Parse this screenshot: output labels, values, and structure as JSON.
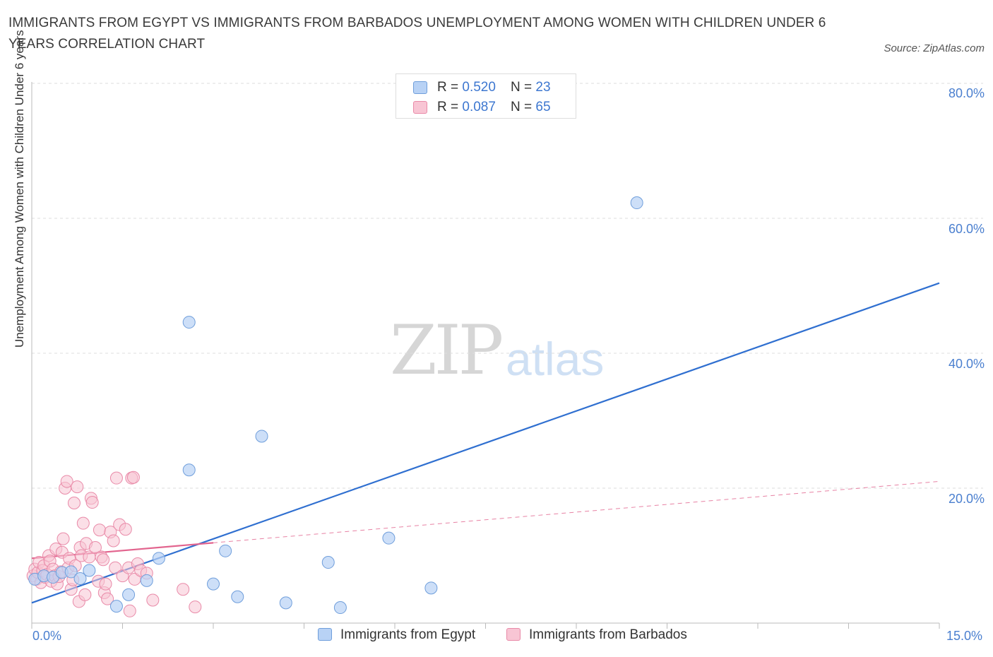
{
  "header": {
    "title": "IMMIGRANTS FROM EGYPT VS IMMIGRANTS FROM BARBADOS UNEMPLOYMENT AMONG WOMEN WITH CHILDREN UNDER 6 YEARS CORRELATION CHART",
    "source": "Source: ZipAtlas.com"
  },
  "watermark": {
    "zip": "ZIP",
    "atlas": "atlas"
  },
  "legend_top": {
    "rows": [
      {
        "r_label": "R = ",
        "r_value": "0.520",
        "n_label": "N = ",
        "n_value": "23"
      },
      {
        "r_label": "R = ",
        "r_value": "0.087",
        "n_label": "N = ",
        "n_value": "65"
      }
    ]
  },
  "legend_bottom": {
    "items": [
      "Immigrants from Egypt",
      "Immigrants from Barbados"
    ]
  },
  "colors": {
    "egypt_fill": "#b8d2f5",
    "egypt_stroke": "#6f9edb",
    "egypt_line": "#2f6fd0",
    "barbados_fill": "#f8c5d4",
    "barbados_stroke": "#e98aa8",
    "barbados_line": "#e2648e",
    "grid": "#dedede",
    "tick_text": "#4a7fcf"
  },
  "chart_data": {
    "type": "scatter",
    "title": "IMMIGRANTS FROM EGYPT VS IMMIGRANTS FROM BARBADOS UNEMPLOYMENT AMONG WOMEN WITH CHILDREN UNDER 6 YEARS CORRELATION CHART",
    "xlabel": "",
    "ylabel": "Unemployment Among Women with Children Under 6 years",
    "xlim": [
      0,
      15
    ],
    "ylim": [
      0,
      80
    ],
    "x_tick_labels": [
      "0.0%",
      "15.0%"
    ],
    "y_tick_labels": [
      "80.0%",
      "60.0%",
      "40.0%",
      "20.0%"
    ],
    "y_ticks": [
      80,
      60,
      40,
      20
    ],
    "grid": true,
    "legend_position": "top-center",
    "series": [
      {
        "name": "Immigrants from Egypt",
        "R": 0.52,
        "N": 23,
        "points": [
          [
            0.05,
            6.5
          ],
          [
            0.2,
            7.0
          ],
          [
            0.35,
            6.8
          ],
          [
            0.5,
            7.5
          ],
          [
            0.65,
            7.6
          ],
          [
            0.8,
            6.6
          ],
          [
            0.95,
            7.8
          ],
          [
            1.4,
            2.5
          ],
          [
            1.6,
            4.2
          ],
          [
            1.9,
            6.3
          ],
          [
            2.1,
            9.6
          ],
          [
            2.6,
            22.7
          ],
          [
            2.6,
            44.6
          ],
          [
            3.0,
            5.8
          ],
          [
            3.2,
            10.7
          ],
          [
            3.4,
            3.9
          ],
          [
            3.8,
            27.7
          ],
          [
            4.2,
            3.0
          ],
          [
            4.9,
            9.0
          ],
          [
            5.1,
            2.3
          ],
          [
            5.9,
            12.6
          ],
          [
            6.6,
            5.2
          ],
          [
            10.0,
            62.3
          ]
        ],
        "trend": {
          "x": [
            0,
            15
          ],
          "y": [
            3.0,
            50.4
          ]
        }
      },
      {
        "name": "Immigrants from Barbados",
        "R": 0.087,
        "N": 65,
        "points": [
          [
            0.02,
            7.0
          ],
          [
            0.05,
            8.0
          ],
          [
            0.08,
            6.5
          ],
          [
            0.1,
            7.5
          ],
          [
            0.12,
            9.0
          ],
          [
            0.15,
            6.0
          ],
          [
            0.18,
            7.8
          ],
          [
            0.2,
            8.5
          ],
          [
            0.22,
            6.8
          ],
          [
            0.25,
            7.2
          ],
          [
            0.28,
            10.0
          ],
          [
            0.3,
            9.2
          ],
          [
            0.32,
            6.2
          ],
          [
            0.35,
            8.0
          ],
          [
            0.38,
            7.0
          ],
          [
            0.4,
            11.0
          ],
          [
            0.42,
            5.8
          ],
          [
            0.45,
            6.9
          ],
          [
            0.48,
            7.6
          ],
          [
            0.5,
            10.5
          ],
          [
            0.52,
            12.5
          ],
          [
            0.55,
            20.0
          ],
          [
            0.58,
            21.0
          ],
          [
            0.6,
            8.2
          ],
          [
            0.62,
            9.6
          ],
          [
            0.65,
            5.0
          ],
          [
            0.68,
            6.4
          ],
          [
            0.7,
            17.8
          ],
          [
            0.72,
            8.5
          ],
          [
            0.75,
            20.2
          ],
          [
            0.78,
            3.2
          ],
          [
            0.8,
            11.2
          ],
          [
            0.82,
            10.0
          ],
          [
            0.85,
            14.8
          ],
          [
            0.88,
            4.2
          ],
          [
            0.9,
            11.8
          ],
          [
            0.95,
            9.8
          ],
          [
            0.98,
            18.5
          ],
          [
            1.0,
            17.9
          ],
          [
            1.05,
            11.2
          ],
          [
            1.1,
            6.2
          ],
          [
            1.12,
            13.8
          ],
          [
            1.15,
            9.8
          ],
          [
            1.18,
            9.4
          ],
          [
            1.2,
            4.5
          ],
          [
            1.22,
            5.8
          ],
          [
            1.25,
            3.6
          ],
          [
            1.3,
            13.5
          ],
          [
            1.35,
            12.2
          ],
          [
            1.38,
            8.2
          ],
          [
            1.4,
            21.5
          ],
          [
            1.45,
            14.6
          ],
          [
            1.5,
            7.0
          ],
          [
            1.55,
            13.9
          ],
          [
            1.6,
            8.2
          ],
          [
            1.62,
            1.8
          ],
          [
            1.65,
            21.5
          ],
          [
            1.68,
            21.6
          ],
          [
            1.7,
            6.5
          ],
          [
            1.75,
            8.8
          ],
          [
            1.8,
            7.8
          ],
          [
            1.9,
            7.4
          ],
          [
            2.0,
            3.4
          ],
          [
            2.5,
            5.0
          ],
          [
            2.7,
            2.4
          ]
        ],
        "trend_solid": {
          "x": [
            0,
            3.0
          ],
          "y": [
            9.6,
            11.9
          ]
        },
        "trend_dashed": {
          "x": [
            3.0,
            15
          ],
          "y": [
            11.9,
            21.0
          ]
        }
      }
    ]
  }
}
